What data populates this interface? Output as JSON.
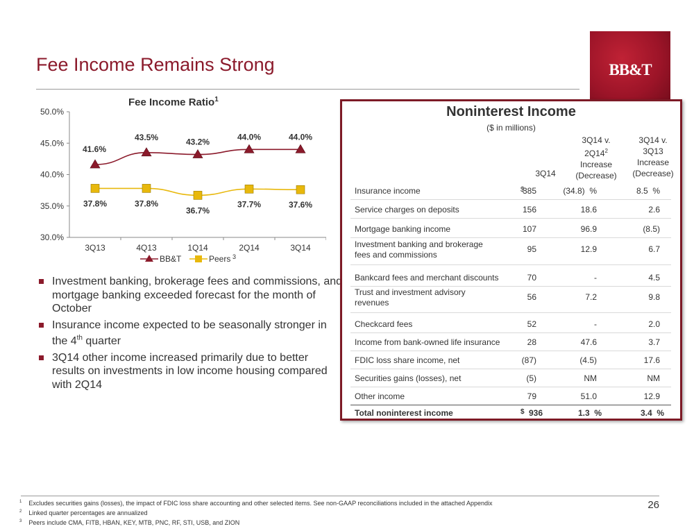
{
  "page": {
    "title": "Fee Income Remains Strong",
    "logo_text": "BB&T",
    "page_number": "26",
    "accent_color": "#8b1a2b"
  },
  "chart_data": {
    "type": "line",
    "title": "Fee Income Ratio",
    "title_superscript": "1",
    "categories": [
      "3Q13",
      "4Q13",
      "1Q14",
      "2Q14",
      "3Q14"
    ],
    "y_ticks": [
      "30.0%",
      "35.0%",
      "40.0%",
      "45.0%",
      "50.0%"
    ],
    "ylim": [
      30,
      50
    ],
    "series": [
      {
        "name": "BB&T",
        "values": [
          41.6,
          43.5,
          43.2,
          44.0,
          44.0
        ],
        "labels": [
          "41.6%",
          "43.5%",
          "43.2%",
          "44.0%",
          "44.0%"
        ],
        "color": "#8b1a2b"
      },
      {
        "name": "Peers",
        "name_superscript": "3",
        "values": [
          37.8,
          37.8,
          36.7,
          37.7,
          37.6
        ],
        "labels": [
          "37.8%",
          "37.8%",
          "36.7%",
          "37.7%",
          "37.6%"
        ],
        "color": "#e8b80c"
      }
    ],
    "legend_position": "bottom",
    "grid": false
  },
  "bullets": [
    "Investment banking, brokerage fees and commissions, and mortgage banking exceeded forecast for the month of October",
    "Insurance income expected to be seasonally stronger in the 4th quarter",
    "3Q14 other income increased primarily due to better results on investments in low income housing compared with 2Q14"
  ],
  "bullet2_parts": {
    "before": "Insurance income expected to be seasonally stronger in the 4",
    "sup": "th",
    "after": " quarter"
  },
  "table": {
    "title": "Noninterest Income",
    "subtitle": "($ in millions)",
    "col1": "3Q14",
    "col2_lines": [
      "3Q14 v.",
      "2Q14",
      "Increase",
      "(Decrease)"
    ],
    "col2_sup": "2",
    "col3_lines": [
      "3Q14 v.",
      "3Q13",
      "Increase",
      "(Decrease)"
    ],
    "rows": [
      {
        "label": "Insurance income",
        "dollar": "$",
        "v1": "385",
        "v2": "(34.8)  %",
        "v3": "8.5  %"
      },
      {
        "label": "Service charges on deposits",
        "dollar": "",
        "v1": "156",
        "v2": "18.6",
        "v3": "2.6"
      },
      {
        "label": "Mortgage banking income",
        "dollar": "",
        "v1": "107",
        "v2": "96.9",
        "v3": "(8.5)"
      },
      {
        "label": "Investment banking and brokerage\nfees and commissions",
        "dollar": "",
        "v1": "95",
        "v2": "12.9",
        "v3": "6.7"
      },
      {
        "label": "Bankcard fees and merchant discounts",
        "dollar": "",
        "v1": "70",
        "v2": "-",
        "v3": "4.5"
      },
      {
        "label": "Trust and investment advisory\nrevenues",
        "dollar": "",
        "v1": "56",
        "v2": "7.2",
        "v3": "9.8"
      },
      {
        "label": "Checkcard fees",
        "dollar": "",
        "v1": "52",
        "v2": "-",
        "v3": "2.0"
      },
      {
        "label": "Income from bank-owned life insurance",
        "dollar": "",
        "v1": "28",
        "v2": "47.6",
        "v3": "3.7"
      },
      {
        "label": "FDIC loss share income, net",
        "dollar": "",
        "v1": "(87)",
        "v2": "(4.5)",
        "v3": "17.6"
      },
      {
        "label": "Securities gains (losses), net",
        "dollar": "",
        "v1": "(5)",
        "v2": "NM",
        "v3": "NM"
      },
      {
        "label": "Other income",
        "dollar": "",
        "v1": "79",
        "v2": "51.0",
        "v3": "12.9"
      }
    ],
    "total": {
      "label": "Total noninterest income",
      "dollar": "$",
      "v1": "936",
      "v2": "1.3  %",
      "v3": "3.4  %"
    }
  },
  "footnotes": [
    {
      "num": "1",
      "text": "Excludes securities gains (losses), the impact of FDIC loss share accounting and other selected items.  See non-GAAP reconciliations included in the attached Appendix"
    },
    {
      "num": "2",
      "text": "Linked quarter percentages are annualized"
    },
    {
      "num": "3",
      "text": "Peers include CMA, FITB, HBAN, KEY, MTB, PNC, RF, STI, USB, and ZION"
    }
  ]
}
